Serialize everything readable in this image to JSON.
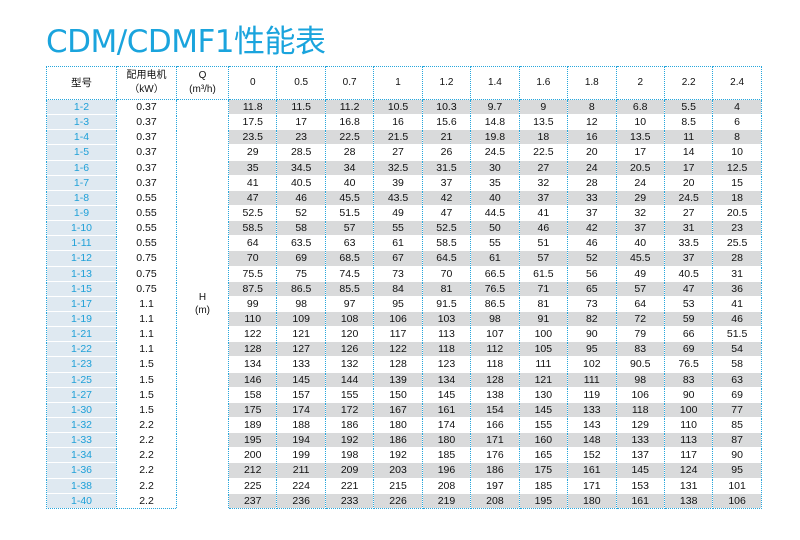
{
  "title": "CDM/CDMF1性能表",
  "header": {
    "model_label": "型号",
    "power_label_line1": "配用电机",
    "power_label_line2": "（kW）",
    "flow_label_line1": "Q",
    "flow_label_line2": "(m³/h)",
    "flows": [
      "0",
      "0.5",
      "0.7",
      "1",
      "1.2",
      "1.4",
      "1.6",
      "1.8",
      "2",
      "2.2",
      "2.4"
    ]
  },
  "head_label_line1": "H",
  "head_label_line2": "(m)",
  "rows": [
    {
      "model": "1-2",
      "power": "0.37",
      "values": [
        "11.8",
        "11.5",
        "11.2",
        "10.5",
        "10.3",
        "9.7",
        "9",
        "8",
        "6.8",
        "5.5",
        "4"
      ]
    },
    {
      "model": "1-3",
      "power": "0.37",
      "values": [
        "17.5",
        "17",
        "16.8",
        "16",
        "15.6",
        "14.8",
        "13.5",
        "12",
        "10",
        "8.5",
        "6"
      ]
    },
    {
      "model": "1-4",
      "power": "0.37",
      "values": [
        "23.5",
        "23",
        "22.5",
        "21.5",
        "21",
        "19.8",
        "18",
        "16",
        "13.5",
        "11",
        "8"
      ]
    },
    {
      "model": "1-5",
      "power": "0.37",
      "values": [
        "29",
        "28.5",
        "28",
        "27",
        "26",
        "24.5",
        "22.5",
        "20",
        "17",
        "14",
        "10"
      ]
    },
    {
      "model": "1-6",
      "power": "0.37",
      "values": [
        "35",
        "34.5",
        "34",
        "32.5",
        "31.5",
        "30",
        "27",
        "24",
        "20.5",
        "17",
        "12.5"
      ]
    },
    {
      "model": "1-7",
      "power": "0.37",
      "values": [
        "41",
        "40.5",
        "40",
        "39",
        "37",
        "35",
        "32",
        "28",
        "24",
        "20",
        "15"
      ]
    },
    {
      "model": "1-8",
      "power": "0.55",
      "values": [
        "47",
        "46",
        "45.5",
        "43.5",
        "42",
        "40",
        "37",
        "33",
        "29",
        "24.5",
        "18"
      ]
    },
    {
      "model": "1-9",
      "power": "0.55",
      "values": [
        "52.5",
        "52",
        "51.5",
        "49",
        "47",
        "44.5",
        "41",
        "37",
        "32",
        "27",
        "20.5"
      ]
    },
    {
      "model": "1-10",
      "power": "0.55",
      "values": [
        "58.5",
        "58",
        "57",
        "55",
        "52.5",
        "50",
        "46",
        "42",
        "37",
        "31",
        "23"
      ]
    },
    {
      "model": "1-11",
      "power": "0.55",
      "values": [
        "64",
        "63.5",
        "63",
        "61",
        "58.5",
        "55",
        "51",
        "46",
        "40",
        "33.5",
        "25.5"
      ]
    },
    {
      "model": "1-12",
      "power": "0.75",
      "values": [
        "70",
        "69",
        "68.5",
        "67",
        "64.5",
        "61",
        "57",
        "52",
        "45.5",
        "37",
        "28"
      ]
    },
    {
      "model": "1-13",
      "power": "0.75",
      "values": [
        "75.5",
        "75",
        "74.5",
        "73",
        "70",
        "66.5",
        "61.5",
        "56",
        "49",
        "40.5",
        "31"
      ]
    },
    {
      "model": "1-15",
      "power": "0.75",
      "values": [
        "87.5",
        "86.5",
        "85.5",
        "84",
        "81",
        "76.5",
        "71",
        "65",
        "57",
        "47",
        "36"
      ]
    },
    {
      "model": "1-17",
      "power": "1.1",
      "values": [
        "99",
        "98",
        "97",
        "95",
        "91.5",
        "86.5",
        "81",
        "73",
        "64",
        "53",
        "41"
      ]
    },
    {
      "model": "1-19",
      "power": "1.1",
      "values": [
        "110",
        "109",
        "108",
        "106",
        "103",
        "98",
        "91",
        "82",
        "72",
        "59",
        "46"
      ]
    },
    {
      "model": "1-21",
      "power": "1.1",
      "values": [
        "122",
        "121",
        "120",
        "117",
        "113",
        "107",
        "100",
        "90",
        "79",
        "66",
        "51.5"
      ]
    },
    {
      "model": "1-22",
      "power": "1.1",
      "values": [
        "128",
        "127",
        "126",
        "122",
        "118",
        "112",
        "105",
        "95",
        "83",
        "69",
        "54"
      ]
    },
    {
      "model": "1-23",
      "power": "1.5",
      "values": [
        "134",
        "133",
        "132",
        "128",
        "123",
        "118",
        "111",
        "102",
        "90.5",
        "76.5",
        "58"
      ]
    },
    {
      "model": "1-25",
      "power": "1.5",
      "values": [
        "146",
        "145",
        "144",
        "139",
        "134",
        "128",
        "121",
        "111",
        "98",
        "83",
        "63"
      ]
    },
    {
      "model": "1-27",
      "power": "1.5",
      "values": [
        "158",
        "157",
        "155",
        "150",
        "145",
        "138",
        "130",
        "119",
        "106",
        "90",
        "69"
      ]
    },
    {
      "model": "1-30",
      "power": "1.5",
      "values": [
        "175",
        "174",
        "172",
        "167",
        "161",
        "154",
        "145",
        "133",
        "118",
        "100",
        "77"
      ]
    },
    {
      "model": "1-32",
      "power": "2.2",
      "values": [
        "189",
        "188",
        "186",
        "180",
        "174",
        "166",
        "155",
        "143",
        "129",
        "110",
        "85"
      ]
    },
    {
      "model": "1-33",
      "power": "2.2",
      "values": [
        "195",
        "194",
        "192",
        "186",
        "180",
        "171",
        "160",
        "148",
        "133",
        "113",
        "87"
      ]
    },
    {
      "model": "1-34",
      "power": "2.2",
      "values": [
        "200",
        "199",
        "198",
        "192",
        "185",
        "176",
        "165",
        "152",
        "137",
        "117",
        "90"
      ]
    },
    {
      "model": "1-36",
      "power": "2.2",
      "values": [
        "212",
        "211",
        "209",
        "203",
        "196",
        "186",
        "175",
        "161",
        "145",
        "124",
        "95"
      ]
    },
    {
      "model": "1-38",
      "power": "2.2",
      "values": [
        "225",
        "224",
        "221",
        "215",
        "208",
        "197",
        "185",
        "171",
        "153",
        "131",
        "101"
      ]
    },
    {
      "model": "1-40",
      "power": "2.2",
      "values": [
        "237",
        "236",
        "233",
        "226",
        "219",
        "208",
        "195",
        "180",
        "161",
        "138",
        "106"
      ]
    }
  ]
}
